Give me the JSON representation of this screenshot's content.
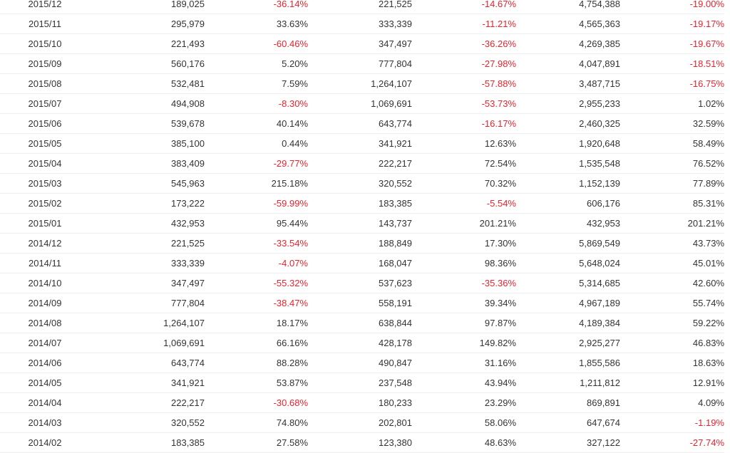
{
  "colors": {
    "text": "#333333",
    "negative": "#e8232d",
    "row_border": "#eeeeee"
  },
  "rows": [
    {
      "month": "2015/12",
      "v1": "189,025",
      "p1": "-36.14%",
      "v2": "221,525",
      "p2": "-14.67%",
      "v3": "4,754,388",
      "p3": "-19.00%"
    },
    {
      "month": "2015/11",
      "v1": "295,979",
      "p1": "33.63%",
      "v2": "333,339",
      "p2": "-11.21%",
      "v3": "4,565,363",
      "p3": "-19.17%"
    },
    {
      "month": "2015/10",
      "v1": "221,493",
      "p1": "-60.46%",
      "v2": "347,497",
      "p2": "-36.26%",
      "v3": "4,269,385",
      "p3": "-19.67%"
    },
    {
      "month": "2015/09",
      "v1": "560,176",
      "p1": "5.20%",
      "v2": "777,804",
      "p2": "-27.98%",
      "v3": "4,047,891",
      "p3": "-18.51%"
    },
    {
      "month": "2015/08",
      "v1": "532,481",
      "p1": "7.59%",
      "v2": "1,264,107",
      "p2": "-57.88%",
      "v3": "3,487,715",
      "p3": "-16.75%"
    },
    {
      "month": "2015/07",
      "v1": "494,908",
      "p1": "-8.30%",
      "v2": "1,069,691",
      "p2": "-53.73%",
      "v3": "2,955,233",
      "p3": "1.02%"
    },
    {
      "month": "2015/06",
      "v1": "539,678",
      "p1": "40.14%",
      "v2": "643,774",
      "p2": "-16.17%",
      "v3": "2,460,325",
      "p3": "32.59%"
    },
    {
      "month": "2015/05",
      "v1": "385,100",
      "p1": "0.44%",
      "v2": "341,921",
      "p2": "12.63%",
      "v3": "1,920,648",
      "p3": "58.49%"
    },
    {
      "month": "2015/04",
      "v1": "383,409",
      "p1": "-29.77%",
      "v2": "222,217",
      "p2": "72.54%",
      "v3": "1,535,548",
      "p3": "76.52%"
    },
    {
      "month": "2015/03",
      "v1": "545,963",
      "p1": "215.18%",
      "v2": "320,552",
      "p2": "70.32%",
      "v3": "1,152,139",
      "p3": "77.89%"
    },
    {
      "month": "2015/02",
      "v1": "173,222",
      "p1": "-59.99%",
      "v2": "183,385",
      "p2": "-5.54%",
      "v3": "606,176",
      "p3": "85.31%"
    },
    {
      "month": "2015/01",
      "v1": "432,953",
      "p1": "95.44%",
      "v2": "143,737",
      "p2": "201.21%",
      "v3": "432,953",
      "p3": "201.21%"
    },
    {
      "month": "2014/12",
      "v1": "221,525",
      "p1": "-33.54%",
      "v2": "188,849",
      "p2": "17.30%",
      "v3": "5,869,549",
      "p3": "43.73%"
    },
    {
      "month": "2014/11",
      "v1": "333,339",
      "p1": "-4.07%",
      "v2": "168,047",
      "p2": "98.36%",
      "v3": "5,648,024",
      "p3": "45.01%"
    },
    {
      "month": "2014/10",
      "v1": "347,497",
      "p1": "-55.32%",
      "v2": "537,623",
      "p2": "-35.36%",
      "v3": "5,314,685",
      "p3": "42.60%"
    },
    {
      "month": "2014/09",
      "v1": "777,804",
      "p1": "-38.47%",
      "v2": "558,191",
      "p2": "39.34%",
      "v3": "4,967,189",
      "p3": "55.74%"
    },
    {
      "month": "2014/08",
      "v1": "1,264,107",
      "p1": "18.17%",
      "v2": "638,844",
      "p2": "97.87%",
      "v3": "4,189,384",
      "p3": "59.22%"
    },
    {
      "month": "2014/07",
      "v1": "1,069,691",
      "p1": "66.16%",
      "v2": "428,178",
      "p2": "149.82%",
      "v3": "2,925,277",
      "p3": "46.83%"
    },
    {
      "month": "2014/06",
      "v1": "643,774",
      "p1": "88.28%",
      "v2": "490,847",
      "p2": "31.16%",
      "v3": "1,855,586",
      "p3": "18.63%"
    },
    {
      "month": "2014/05",
      "v1": "341,921",
      "p1": "53.87%",
      "v2": "237,548",
      "p2": "43.94%",
      "v3": "1,211,812",
      "p3": "12.91%"
    },
    {
      "month": "2014/04",
      "v1": "222,217",
      "p1": "-30.68%",
      "v2": "180,233",
      "p2": "23.29%",
      "v3": "869,891",
      "p3": "4.09%"
    },
    {
      "month": "2014/03",
      "v1": "320,552",
      "p1": "74.80%",
      "v2": "202,801",
      "p2": "58.06%",
      "v3": "647,674",
      "p3": "-1.19%"
    },
    {
      "month": "2014/02",
      "v1": "183,385",
      "p1": "27.58%",
      "v2": "123,380",
      "p2": "48.63%",
      "v3": "327,122",
      "p3": "-27.74%"
    }
  ]
}
